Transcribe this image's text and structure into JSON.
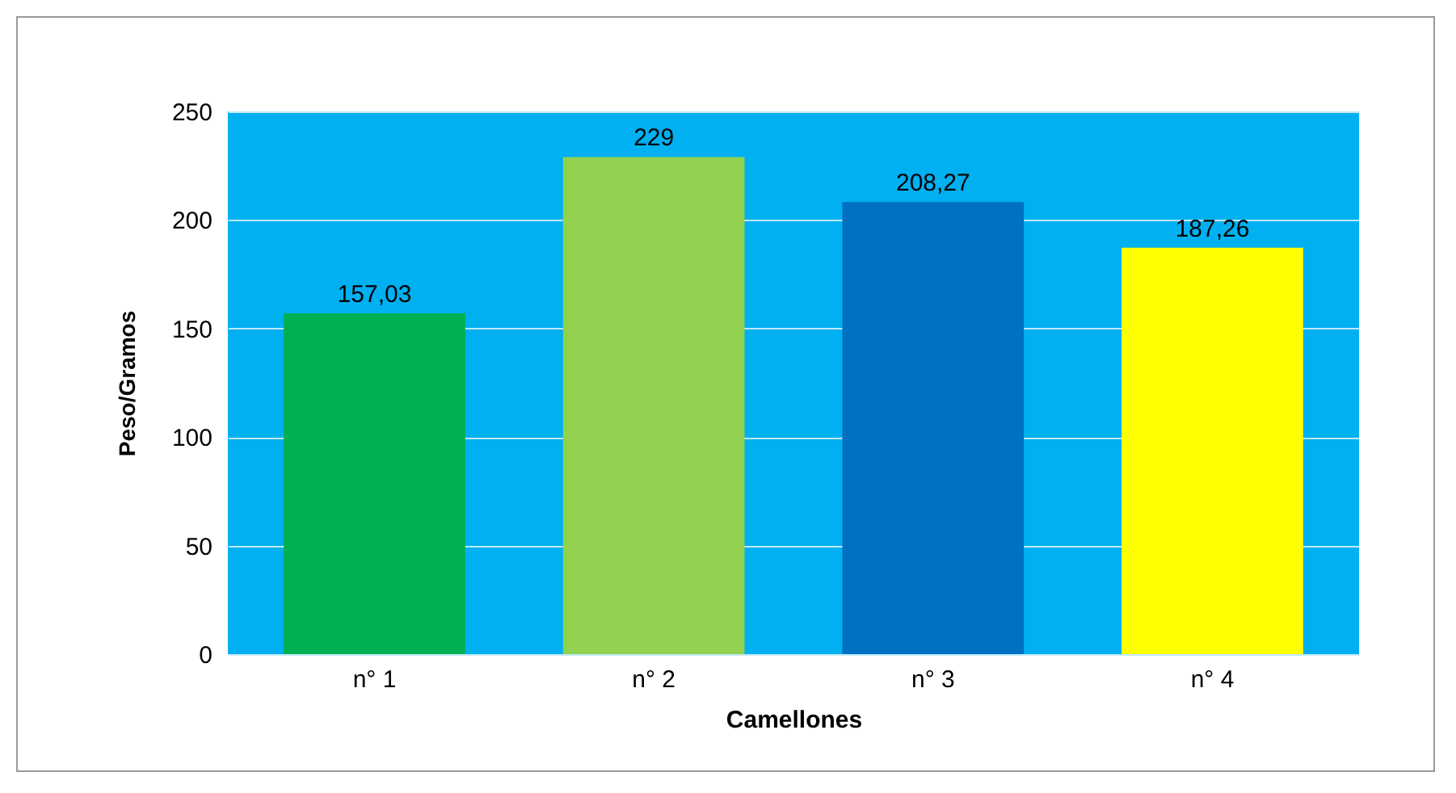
{
  "chart_data": {
    "type": "bar",
    "xlabel": "Camellones",
    "ylabel": "Peso/Gramos",
    "categories": [
      "n° 1",
      "n° 2",
      "n° 3",
      "n° 4"
    ],
    "values": [
      157.03,
      229,
      208.27,
      187.26
    ],
    "value_labels": [
      "157,03",
      "229",
      "208,27",
      "187,26"
    ],
    "colors": [
      "#00b050",
      "#92d050",
      "#0070c0",
      "#ffff00"
    ],
    "ylim": [
      0,
      250
    ],
    "yticks": [
      0,
      50,
      100,
      150,
      200,
      250
    ],
    "grid": "y"
  }
}
